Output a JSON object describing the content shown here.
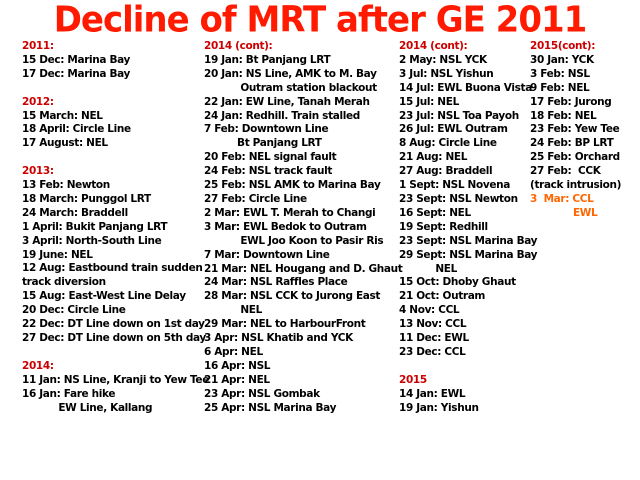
{
  "title": "Decline of MRT after GE 2011",
  "colors": {
    "title": "#ff1a00",
    "heading": "#cc0000",
    "highlight": "#ff6600",
    "text": "#000000"
  },
  "columns": [
    {
      "id": "col-1",
      "lines": [
        {
          "text": "2011:",
          "style": "head"
        },
        {
          "text": "15 Dec: Marina Bay"
        },
        {
          "text": "17 Dec: Marina Bay"
        },
        {
          "text": "",
          "style": "gap"
        },
        {
          "text": "2012:",
          "style": "head"
        },
        {
          "text": "15 March: NEL"
        },
        {
          "text": "18 April: Circle Line"
        },
        {
          "text": "17 August: NEL"
        },
        {
          "text": "",
          "style": "gap"
        },
        {
          "text": "2013:",
          "style": "head"
        },
        {
          "text": "13 Feb: Newton"
        },
        {
          "text": "18 March: Punggol LRT"
        },
        {
          "text": "24 March: Braddell"
        },
        {
          "text": "1 April: Bukit Panjang LRT"
        },
        {
          "text": "3 April: North-South Line"
        },
        {
          "text": "19 June: NEL"
        },
        {
          "text": "12 Aug: Eastbound train sudden"
        },
        {
          "text": "track diversion"
        },
        {
          "text": "15 Aug: East-West Line Delay"
        },
        {
          "text": "20 Dec: Circle Line"
        },
        {
          "text": "22 Dec: DT Line down on 1st day"
        },
        {
          "text": "27 Dec: DT Line down on 5th day"
        },
        {
          "text": "",
          "style": "gap"
        },
        {
          "text": "2014:",
          "style": "head"
        },
        {
          "text": "11 Jan: NS Line, Kranji to Yew Tee"
        },
        {
          "text": "16 Jan: Fare hike"
        },
        {
          "text": "           EW Line, Kallang"
        }
      ]
    },
    {
      "id": "col-2",
      "lines": [
        {
          "text": "2014 (cont):",
          "style": "head"
        },
        {
          "text": "19 Jan: Bt Panjang LRT"
        },
        {
          "text": "20 Jan: NS Line, AMK to M. Bay"
        },
        {
          "text": "           Outram station blackout"
        },
        {
          "text": "22 Jan: EW Line, Tanah Merah"
        },
        {
          "text": "24 Jan: Redhill. Train stalled"
        },
        {
          "text": "7 Feb: Downtown Line"
        },
        {
          "text": "          Bt Panjang LRT"
        },
        {
          "text": "20 Feb: NEL signal fault"
        },
        {
          "text": "24 Feb: NSL track fault"
        },
        {
          "text": "25 Feb: NSL AMK to Marina Bay"
        },
        {
          "text": "27 Feb: Circle Line"
        },
        {
          "text": "2 Mar: EWL T. Merah to Changi"
        },
        {
          "text": "3 Mar: EWL Bedok to Outram"
        },
        {
          "text": "           EWL Joo Koon to Pasir Ris"
        },
        {
          "text": "7 Mar: Downtown Line"
        },
        {
          "text": "21 Mar: NEL Hougang and D. Ghaut"
        },
        {
          "text": "24 Mar: NSL Raffles Place"
        },
        {
          "text": "28 Mar: NSL CCK to Jurong East"
        },
        {
          "text": "           NEL"
        },
        {
          "text": "29 Mar: NEL to HarbourFront"
        },
        {
          "text": "3 Apr: NSL Khatib and YCK"
        },
        {
          "text": "6 Apr: NEL"
        },
        {
          "text": "16 Apr: NSL"
        },
        {
          "text": "21 Apr: NEL"
        },
        {
          "text": "23 Apr: NSL Gombak"
        },
        {
          "text": "25 Apr: NSL Marina Bay"
        }
      ]
    },
    {
      "id": "col-3",
      "lines": [
        {
          "text": "2014 (cont):",
          "style": "head"
        },
        {
          "text": "2 May: NSL YCK"
        },
        {
          "text": "3 Jul: NSL Yishun"
        },
        {
          "text": "14 Jul: EWL Buona Vista"
        },
        {
          "text": "15 Jul: NEL"
        },
        {
          "text": "23 Jul: NSL Toa Payoh"
        },
        {
          "text": "26 Jul: EWL Outram"
        },
        {
          "text": "8 Aug: Circle Line"
        },
        {
          "text": "21 Aug: NEL"
        },
        {
          "text": "27 Aug: Braddell"
        },
        {
          "text": "1 Sept: NSL Novena"
        },
        {
          "text": "23 Sept: NSL Newton"
        },
        {
          "text": "16 Sept: NEL"
        },
        {
          "text": "19 Sept: Redhill"
        },
        {
          "text": "23 Sept: NSL Marina Bay"
        },
        {
          "text": "29 Sept: NSL Marina Bay"
        },
        {
          "text": "           NEL"
        },
        {
          "text": "15 Oct: Dhoby Ghaut"
        },
        {
          "text": "21 Oct: Outram"
        },
        {
          "text": "4 Nov: CCL"
        },
        {
          "text": "13 Nov: CCL"
        },
        {
          "text": "11 Dec: EWL"
        },
        {
          "text": "23 Dec: CCL"
        },
        {
          "text": "",
          "style": "gap"
        },
        {
          "text": "2015",
          "style": "head"
        },
        {
          "text": "14 Jan: EWL"
        },
        {
          "text": "19 Jan: Yishun"
        }
      ]
    },
    {
      "id": "col-4",
      "lines": [
        {
          "text": "2015(cont):",
          "style": "head"
        },
        {
          "text": "30 Jan: YCK"
        },
        {
          "text": "3 Feb: NSL"
        },
        {
          "text": "9 Feb: NEL"
        },
        {
          "text": "17 Feb: Jurong"
        },
        {
          "text": "18 Feb: NEL"
        },
        {
          "text": "23 Feb: Yew Tee"
        },
        {
          "text": "24 Feb: BP LRT"
        },
        {
          "text": "25 Feb: Orchard"
        },
        {
          "text": "27 Feb:  CCK"
        },
        {
          "text": "(track intrusion)"
        },
        {
          "text": "3  Mar: CCL",
          "style": "orange"
        },
        {
          "text": "             EWL",
          "style": "orange"
        }
      ]
    }
  ]
}
